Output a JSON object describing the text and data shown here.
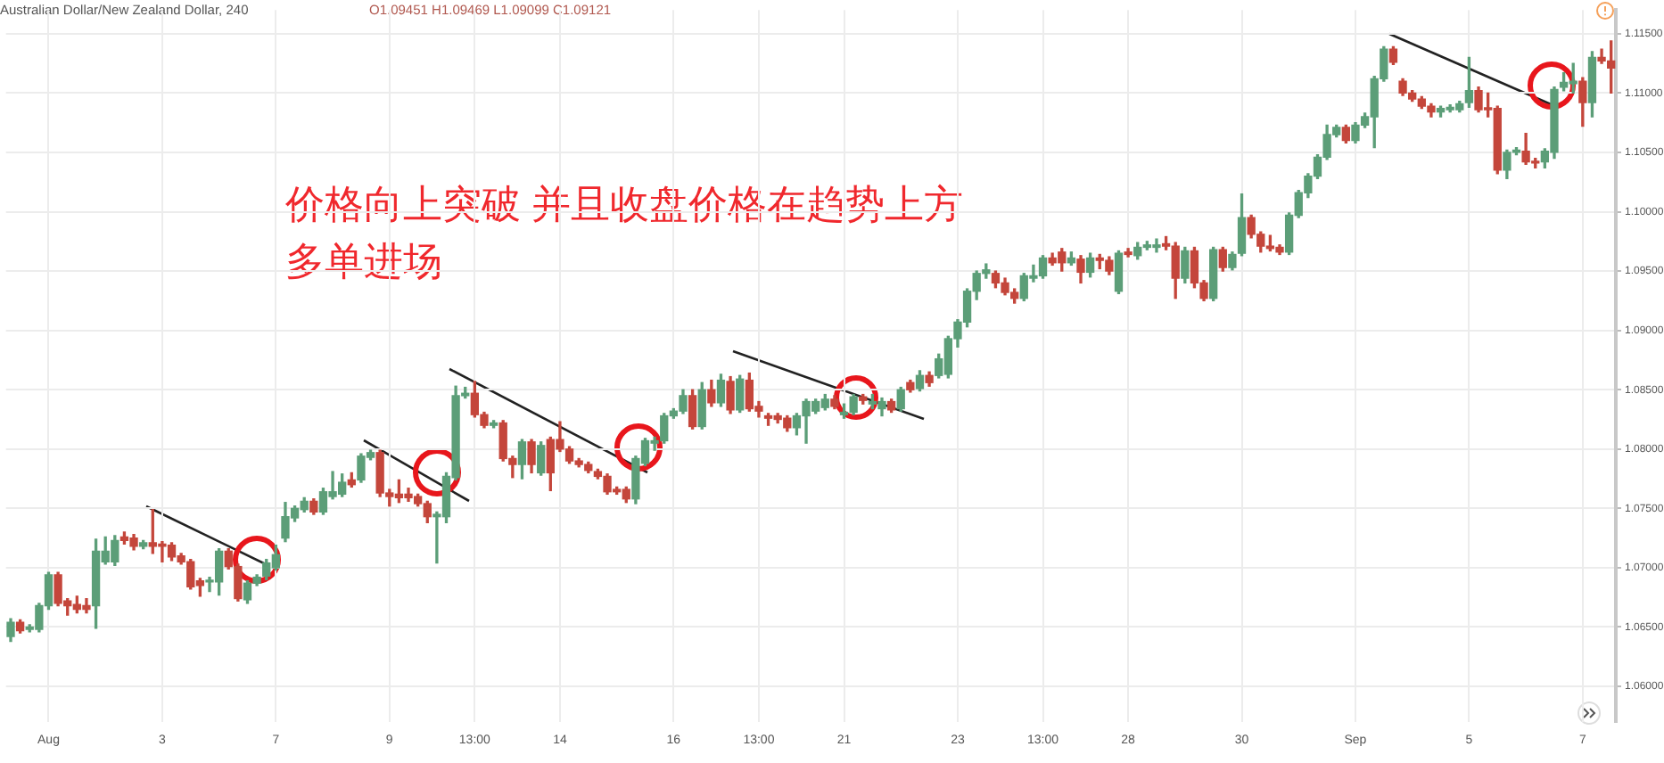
{
  "chart_data": {
    "type": "candlestick",
    "title": "Australian Dollar/New Zealand Dollar, 240",
    "subtitle": "O1.09451 H1.09469 L1.09099 C1.09121",
    "annotations": [
      "价格向上突破 并且收盘价格在趋势上方多单进场"
    ],
    "colors": [
      "#5c9e78",
      "#c4463b",
      "#5c9e78",
      "#5c9e78",
      "#5c9e78",
      "#c4463b",
      "#c4463b",
      "#c4463b",
      "#c4463b",
      "#5c9e78",
      "#5c9e78",
      "#5c9e78",
      "#c4463b",
      "#c4463b",
      "#5c9e78",
      "#c4463b",
      "#c4463b",
      "#c4463b",
      "#c4463b",
      "#c4463b",
      "#c4463b",
      "#5c9e78",
      "#5c9e78",
      "#c4463b",
      "#c4463b",
      "#5c9e78",
      "#5c9e78",
      "#5c9e78",
      "#5c9e78",
      "#5c9e78",
      "#5c9e78",
      "#5c9e78",
      "#c4463b",
      "#5c9e78",
      "#5c9e78",
      "#5c9e78",
      "#c4463b",
      "#5c9e78",
      "#5c9e78",
      "#c4463b",
      "#c4463b",
      "#c4463b",
      "#c4463b",
      "#c4463b",
      "#c4463b",
      "#5c9e78",
      "#5c9e78",
      "#5c9e78",
      "#5c9e78",
      "#c4463b",
      "#c4463b",
      "#5c9e78",
      "#c4463b",
      "#c4463b",
      "#5c9e78",
      "#c4463b",
      "#5c9e78",
      "#c4463b",
      "#c4463b",
      "#c4463b",
      "#c4463b",
      "#c4463b",
      "#c4463b",
      "#c4463b",
      "#c4463b",
      "#c4463b",
      "#5c9e78",
      "#5c9e78",
      "#5c9e78",
      "#5c9e78",
      "#5c9e78",
      "#5c9e78",
      "#c4463b",
      "#5c9e78",
      "#c4463b",
      "#5c9e78",
      "#c4463b",
      "#5c9e78",
      "#c4463b",
      "#c4463b",
      "#c4463b",
      "#c4463b",
      "#c4463b",
      "#5c9e78",
      "#5c9e78",
      "#5c9e78",
      "#5c9e78",
      "#c4463b",
      "#5c9e78",
      "#5c9e78",
      "#c4463b",
      "#5c9e78",
      "#5c9e78",
      "#c4463b",
      "#5c9e78",
      "#c4463b",
      "#5c9e78",
      "#c4463b",
      "#5c9e78",
      "#5c9e78",
      "#5c9e78",
      "#5c9e78",
      "#5c9e78",
      "#5c9e78",
      "#c4463b",
      "#c4463b",
      "#c4463b",
      "#5c9e78",
      "#5c9e78",
      "#5c9e78",
      "#c4463b",
      "#c4463b",
      "#5c9e78",
      "#c4463b",
      "#5c9e78",
      "#c4463b",
      "#c4463b",
      "#5c9e78",
      "#c4463b",
      "#5c9e78",
      "#5c9e78",
      "#5c9e78",
      "#c4463b",
      "#c4463b",
      "#5c9e78",
      "#c4463b",
      "#c4463b",
      "#5c9e78",
      "#c4463b",
      "#5c9e78",
      "#5c9e78",
      "#c4463b",
      "#c4463b",
      "#c4463b",
      "#c4463b",
      "#5c9e78",
      "#5c9e78",
      "#5c9e78",
      "#5c9e78",
      "#5c9e78",
      "#5c9e78",
      "#c4463b",
      "#5c9e78",
      "#5c9e78",
      "#5c9e78",
      "#5c9e78",
      "#c4463b",
      "#c4463b",
      "#c4463b",
      "#c4463b",
      "#c4463b",
      "#5c9e78",
      "#5c9e78",
      "#5c9e78",
      "#5c9e78",
      "#c4463b",
      "#c4463b",
      "#c4463b",
      "#5c9e78",
      "#5c9e78",
      "#c4463b",
      "#c4463b",
      "#5c9e78",
      "#5c9e78",
      "#5c9e78",
      "#5c9e78",
      "#c4463b",
      "#5c9e78",
      "#c4463b",
      "#c4463b"
    ],
    "grid": true,
    "ylim": [
      1.057,
      1.117
    ],
    "yticks": [
      {
        "value": 1.06,
        "label": "1.06000"
      },
      {
        "value": 1.065,
        "label": "1.06500"
      },
      {
        "value": 1.07,
        "label": "1.07000"
      },
      {
        "value": 1.075,
        "label": "1.07500"
      },
      {
        "value": 1.08,
        "label": "1.08000"
      },
      {
        "value": 1.085,
        "label": "1.08500"
      },
      {
        "value": 1.09,
        "label": "1.09000"
      },
      {
        "value": 1.095,
        "label": "1.09500"
      },
      {
        "value": 1.1,
        "label": "1.10000"
      },
      {
        "value": 1.105,
        "label": "1.10500"
      },
      {
        "value": 1.11,
        "label": "1.11000"
      },
      {
        "value": 1.115,
        "label": "1.11500"
      }
    ],
    "categories": [
      null,
      null,
      null,
      null,
      "Aug",
      null,
      null,
      null,
      null,
      null,
      null,
      null,
      null,
      null,
      null,
      null,
      "3",
      null,
      null,
      null,
      null,
      null,
      null,
      null,
      null,
      null,
      null,
      null,
      "7",
      null,
      null,
      null,
      null,
      null,
      null,
      null,
      null,
      null,
      null,
      null,
      "9",
      null,
      null,
      null,
      null,
      null,
      null,
      null,
      null,
      "13:00",
      null,
      null,
      null,
      null,
      null,
      null,
      null,
      null,
      "14",
      null,
      null,
      null,
      null,
      null,
      null,
      null,
      null,
      null,
      null,
      null,
      "16",
      null,
      null,
      null,
      null,
      null,
      null,
      null,
      null,
      "13:00",
      null,
      null,
      null,
      null,
      null,
      null,
      null,
      null,
      "21",
      null,
      null,
      null,
      null,
      null,
      null,
      null,
      null,
      null,
      null,
      null,
      "23",
      null,
      null,
      null,
      null,
      null,
      null,
      null,
      null,
      "13:00",
      null,
      null,
      null,
      null,
      null,
      null,
      null,
      null,
      "28",
      null,
      null,
      null,
      null,
      null,
      null,
      null,
      null,
      null,
      null,
      null,
      "30",
      null,
      null,
      null,
      null,
      null,
      null,
      null,
      null,
      null,
      null,
      null,
      "Sep",
      null,
      null,
      null,
      null,
      null,
      null,
      null,
      null,
      null,
      null,
      null,
      "5",
      null,
      null,
      null,
      null,
      null,
      null,
      null,
      null,
      null,
      null,
      null,
      "7",
      null,
      null,
      null
    ],
    "ohlc": [
      [
        1.0642,
        1.0657,
        1.0638,
        1.0654
      ],
      [
        1.0654,
        1.0656,
        1.0645,
        1.0647
      ],
      [
        1.0648,
        1.0652,
        1.0646,
        1.065
      ],
      [
        1.0648,
        1.067,
        1.0646,
        1.0668
      ],
      [
        1.0668,
        1.0696,
        1.0665,
        1.0694
      ],
      [
        1.0694,
        1.0696,
        1.0668,
        1.067
      ],
      [
        1.0672,
        1.0674,
        1.066,
        1.0668
      ],
      [
        1.0669,
        1.0676,
        1.0662,
        1.0665
      ],
      [
        1.0668,
        1.0674,
        1.0662,
        1.0665
      ],
      [
        1.0668,
        1.0724,
        1.0649,
        1.0714
      ],
      [
        1.0705,
        1.0726,
        1.0703,
        1.0714
      ],
      [
        1.0705,
        1.0727,
        1.0702,
        1.0723
      ],
      [
        1.0726,
        1.073,
        1.072,
        1.0723
      ],
      [
        1.0725,
        1.0728,
        1.0715,
        1.0718
      ],
      [
        1.0718,
        1.0723,
        1.0716,
        1.0721
      ],
      [
        1.0721,
        1.0749,
        1.0712,
        1.0718
      ],
      [
        1.072,
        1.0722,
        1.0705,
        1.0718
      ],
      [
        1.0719,
        1.0721,
        1.0706,
        1.0709
      ],
      [
        1.071,
        1.0712,
        1.0703,
        1.0705
      ],
      [
        1.0705,
        1.0707,
        1.0682,
        1.0684
      ],
      [
        1.0689,
        1.0691,
        1.0676,
        1.0685
      ],
      [
        1.0688,
        1.0692,
        1.068,
        1.0689
      ],
      [
        1.0688,
        1.0716,
        1.0677,
        1.0714
      ],
      [
        1.0714,
        1.0716,
        1.0699,
        1.0701
      ],
      [
        1.0701,
        1.0703,
        1.0672,
        1.0674
      ],
      [
        1.0673,
        1.0689,
        1.067,
        1.0687
      ],
      [
        1.0687,
        1.0694,
        1.0685,
        1.0692
      ],
      [
        1.0693,
        1.0707,
        1.069,
        1.0704
      ],
      [
        1.07,
        1.0719,
        1.0698,
        1.0711
      ],
      [
        1.0725,
        1.0755,
        1.0722,
        1.0743
      ],
      [
        1.0742,
        1.0752,
        1.0739,
        1.075
      ],
      [
        1.0749,
        1.0759,
        1.0747,
        1.0756
      ],
      [
        1.0756,
        1.0758,
        1.0745,
        1.0747
      ],
      [
        1.0747,
        1.0767,
        1.0745,
        1.0764
      ],
      [
        1.076,
        1.0781,
        1.0758,
        1.0764
      ],
      [
        1.0762,
        1.0779,
        1.076,
        1.0772
      ],
      [
        1.0774,
        1.078,
        1.0768,
        1.077
      ],
      [
        1.0774,
        1.0796,
        1.0772,
        1.0794
      ],
      [
        1.0793,
        1.0799,
        1.0791,
        1.0797
      ],
      [
        1.0797,
        1.0799,
        1.076,
        1.0763
      ],
      [
        1.0763,
        1.0766,
        1.0752,
        1.076
      ],
      [
        1.0762,
        1.0774,
        1.0755,
        1.0759
      ],
      [
        1.0762,
        1.0767,
        1.0756,
        1.0759
      ],
      [
        1.076,
        1.0762,
        1.0752,
        1.0754
      ],
      [
        1.0754,
        1.0756,
        1.0738,
        1.0743
      ],
      [
        1.0743,
        1.0747,
        1.0704,
        1.0745
      ],
      [
        1.0743,
        1.078,
        1.0738,
        1.0777
      ],
      [
        1.0776,
        1.0853,
        1.0774,
        1.0845
      ],
      [
        1.0845,
        1.0852,
        1.0843,
        1.0847
      ],
      [
        1.0847,
        1.0857,
        1.0827,
        1.0829
      ],
      [
        1.0829,
        1.0831,
        1.0818,
        1.082
      ],
      [
        1.082,
        1.0824,
        1.0818,
        1.0822
      ],
      [
        1.0822,
        1.0824,
        1.079,
        1.0792
      ],
      [
        1.0792,
        1.0794,
        1.0776,
        1.0787
      ],
      [
        1.0787,
        1.0808,
        1.0775,
        1.0806
      ],
      [
        1.0806,
        1.0808,
        1.078,
        1.0787
      ],
      [
        1.078,
        1.0806,
        1.0778,
        1.0803
      ],
      [
        1.0808,
        1.081,
        1.0765,
        1.078
      ],
      [
        1.0808,
        1.0823,
        1.0798,
        1.08
      ],
      [
        1.08,
        1.0802,
        1.0788,
        1.079
      ],
      [
        1.079,
        1.0792,
        1.0785,
        1.0787
      ],
      [
        1.0787,
        1.0789,
        1.078,
        1.0782
      ],
      [
        1.0781,
        1.0783,
        1.0775,
        1.0777
      ],
      [
        1.0777,
        1.0779,
        1.0762,
        1.0764
      ],
      [
        1.0766,
        1.0768,
        1.0762,
        1.0764
      ],
      [
        1.0766,
        1.0768,
        1.0755,
        1.0758
      ],
      [
        1.0758,
        1.0794,
        1.0754,
        1.0792
      ],
      [
        1.0788,
        1.0809,
        1.0786,
        1.0807
      ],
      [
        1.0805,
        1.081,
        1.0799,
        1.0807
      ],
      [
        1.0807,
        1.083,
        1.0805,
        1.0828
      ],
      [
        1.0828,
        1.0834,
        1.0826,
        1.0832
      ],
      [
        1.0832,
        1.085,
        1.083,
        1.0845
      ],
      [
        1.0845,
        1.085,
        1.0817,
        1.0819
      ],
      [
        1.0819,
        1.0856,
        1.0817,
        1.085
      ],
      [
        1.085,
        1.0858,
        1.0836,
        1.0839
      ],
      [
        1.0839,
        1.0863,
        1.0836,
        1.0858
      ],
      [
        1.0857,
        1.0861,
        1.083,
        1.0833
      ],
      [
        1.0833,
        1.0862,
        1.0831,
        1.0859
      ],
      [
        1.0858,
        1.0864,
        1.0832,
        1.0834
      ],
      [
        1.0836,
        1.084,
        1.0827,
        1.0832
      ],
      [
        1.0828,
        1.083,
        1.082,
        1.0826
      ],
      [
        1.0828,
        1.083,
        1.0822,
        1.0825
      ],
      [
        1.0826,
        1.0828,
        1.0815,
        1.0818
      ],
      [
        1.0818,
        1.083,
        1.0812,
        1.0828
      ],
      [
        1.0828,
        1.0842,
        1.0805,
        1.084
      ],
      [
        1.0832,
        1.0842,
        1.083,
        1.084
      ],
      [
        1.0835,
        1.0846,
        1.0833,
        1.0842
      ],
      [
        1.0842,
        1.0845,
        1.0834,
        1.0836
      ],
      [
        1.0829,
        1.0838,
        1.0826,
        1.0831
      ],
      [
        1.0831,
        1.0846,
        1.0829,
        1.0844
      ],
      [
        1.0844,
        1.0846,
        1.0838,
        1.0841
      ],
      [
        1.0838,
        1.0846,
        1.0834,
        1.084
      ],
      [
        1.0834,
        1.0843,
        1.0828,
        1.084
      ],
      [
        1.084,
        1.0842,
        1.0831,
        1.0833
      ],
      [
        1.0834,
        1.0852,
        1.0832,
        1.085
      ],
      [
        1.0856,
        1.0858,
        1.0848,
        1.085
      ],
      [
        1.0851,
        1.0866,
        1.0849,
        1.0862
      ],
      [
        1.0862,
        1.0865,
        1.0853,
        1.0856
      ],
      [
        1.0862,
        1.088,
        1.086,
        1.0876
      ],
      [
        1.0863,
        1.0895,
        1.086,
        1.0893
      ],
      [
        1.0893,
        1.0909,
        1.0886,
        1.0907
      ],
      [
        1.0907,
        1.0935,
        1.0903,
        1.0933
      ],
      [
        1.0933,
        1.095,
        1.0926,
        1.0948
      ],
      [
        1.0948,
        1.0956,
        1.0944,
        1.0951
      ],
      [
        1.0948,
        1.095,
        1.0936,
        1.094
      ],
      [
        1.094,
        1.0944,
        1.093,
        1.0932
      ],
      [
        1.0932,
        1.0935,
        1.0923,
        1.0927
      ],
      [
        1.0927,
        1.0948,
        1.0925,
        1.0946
      ],
      [
        1.0944,
        1.0955,
        1.0941,
        1.0946
      ],
      [
        1.0946,
        1.0963,
        1.0944,
        1.0961
      ],
      [
        1.0961,
        1.0965,
        1.0955,
        1.0957
      ],
      [
        1.0966,
        1.0969,
        1.095,
        1.0957
      ],
      [
        1.0957,
        1.0966,
        1.0955,
        1.0961
      ],
      [
        1.096,
        1.0963,
        1.094,
        1.0949
      ],
      [
        1.0949,
        1.0965,
        1.0945,
        1.0961
      ],
      [
        1.0961,
        1.0964,
        1.0952,
        1.0959
      ],
      [
        1.0959,
        1.0962,
        1.0947,
        1.095
      ],
      [
        1.0933,
        1.0967,
        1.0931,
        1.0965
      ],
      [
        1.0966,
        1.0969,
        1.0962,
        1.0964
      ],
      [
        1.0963,
        1.0974,
        1.096,
        1.097
      ],
      [
        1.097,
        1.0975,
        1.0968,
        1.0972
      ],
      [
        1.097,
        1.0977,
        1.0966,
        1.0972
      ],
      [
        1.0973,
        1.0979,
        1.0968,
        1.0971
      ],
      [
        1.0971,
        1.0974,
        1.0927,
        1.0944
      ],
      [
        1.0944,
        1.097,
        1.094,
        1.0967
      ],
      [
        1.0967,
        1.097,
        1.0936,
        1.094
      ],
      [
        1.094,
        1.0942,
        1.0925,
        1.0927
      ],
      [
        1.0927,
        1.097,
        1.0925,
        1.0968
      ],
      [
        1.0968,
        1.097,
        1.095,
        1.0953
      ],
      [
        1.0953,
        1.0966,
        1.0951,
        1.0964
      ],
      [
        1.0965,
        1.1015,
        1.0963,
        1.0995
      ],
      [
        1.0995,
        1.0997,
        1.0978,
        1.0981
      ],
      [
        1.0981,
        1.0983,
        1.0966,
        1.0971
      ],
      [
        1.0971,
        1.098,
        1.0967,
        1.0969
      ],
      [
        1.097,
        1.0972,
        1.0964,
        1.0966
      ],
      [
        1.0966,
        1.0999,
        1.0964,
        1.0997
      ],
      [
        1.0997,
        1.1018,
        1.0995,
        1.1016
      ],
      [
        1.1016,
        1.1032,
        1.1012,
        1.103
      ],
      [
        1.103,
        1.1048,
        1.1028,
        1.1046
      ],
      [
        1.1046,
        1.1073,
        1.1044,
        1.1065
      ],
      [
        1.1065,
        1.1073,
        1.1063,
        1.1071
      ],
      [
        1.1071,
        1.1073,
        1.1058,
        1.106
      ],
      [
        1.106,
        1.1075,
        1.1058,
        1.1073
      ],
      [
        1.1073,
        1.1083,
        1.1071,
        1.108
      ],
      [
        1.108,
        1.1114,
        1.1054,
        1.1112
      ],
      [
        1.1112,
        1.1139,
        1.111,
        1.1137
      ],
      [
        1.1137,
        1.1139,
        1.1124,
        1.1126
      ],
      [
        1.111,
        1.1112,
        1.1098,
        1.11
      ],
      [
        1.11,
        1.1102,
        1.1093,
        1.1095
      ],
      [
        1.1095,
        1.1097,
        1.1087,
        1.1089
      ],
      [
        1.1089,
        1.1091,
        1.108,
        1.1084
      ],
      [
        1.1084,
        1.1089,
        1.108,
        1.1087
      ],
      [
        1.1086,
        1.109,
        1.1084,
        1.1088
      ],
      [
        1.1086,
        1.1093,
        1.1084,
        1.1091
      ],
      [
        1.1092,
        1.113,
        1.1088,
        1.1102
      ],
      [
        1.1102,
        1.1105,
        1.1084,
        1.1086
      ],
      [
        1.1087,
        1.11,
        1.108,
        1.1086
      ],
      [
        1.1087,
        1.1089,
        1.1032,
        1.1035
      ],
      [
        1.1035,
        1.1052,
        1.1028,
        1.105
      ],
      [
        1.105,
        1.1054,
        1.1048,
        1.1052
      ],
      [
        1.1051,
        1.1066,
        1.104,
        1.1042
      ],
      [
        1.1042,
        1.1045,
        1.1037,
        1.1041
      ],
      [
        1.1042,
        1.1053,
        1.1037,
        1.1051
      ],
      [
        1.105,
        1.1105,
        1.1045,
        1.1103
      ],
      [
        1.1105,
        1.1117,
        1.1102,
        1.1109
      ],
      [
        1.1108,
        1.1125,
        1.11,
        1.111
      ],
      [
        1.111,
        1.1113,
        1.1072,
        1.1092
      ],
      [
        1.1092,
        1.1135,
        1.108,
        1.113
      ],
      [
        1.113,
        1.1137,
        1.1125,
        1.1127
      ],
      [
        1.1127,
        1.1144,
        1.11,
        1.1121
      ]
    ]
  }
}
